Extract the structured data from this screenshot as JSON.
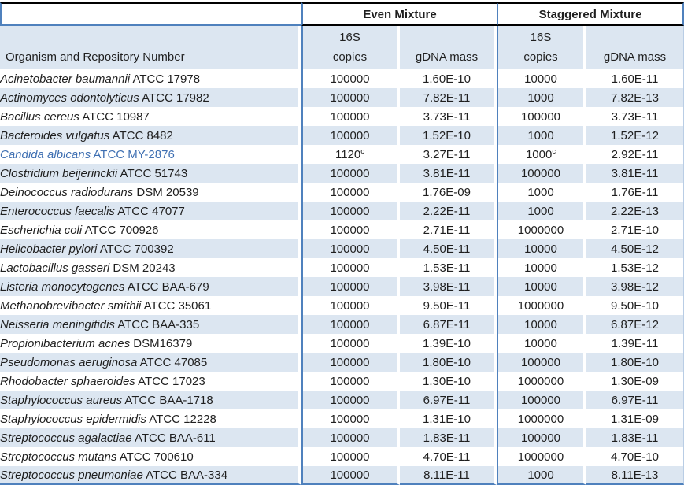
{
  "table": {
    "group_headers": {
      "even": "Even Mixture",
      "staggered": "Staggered Mixture"
    },
    "column_headers": {
      "organism": "Organism and Repository Number",
      "copies_line1": "16S",
      "copies_line2": "copies",
      "gdna_even": "gDNA mass",
      "gdna_staggered": "gDNA mass"
    },
    "colors": {
      "stripe_fill": "#dce6f1",
      "separator_blue": "#4f81bd",
      "top_rule_black": "#000000",
      "bottom_rule_blue": "#4f81bd",
      "highlight_organism": "#3e6fb2"
    },
    "rows": [
      {
        "species": "Acinetobacter baumannii",
        "repo": "ATCC 17978",
        "even_16s": "100000",
        "even_gdna": "1.60E-10",
        "stag_16s": "10000",
        "stag_gdna": "1.60E-11"
      },
      {
        "species": "Actinomyces odontolyticus",
        "repo": "ATCC 17982",
        "even_16s": "100000",
        "even_gdna": "7.82E-11",
        "stag_16s": "1000",
        "stag_gdna": "7.82E-13"
      },
      {
        "species": "Bacillus cereus",
        "repo": "ATCC 10987",
        "even_16s": "100000",
        "even_gdna": "3.73E-11",
        "stag_16s": "100000",
        "stag_gdna": "3.73E-11"
      },
      {
        "species": "Bacteroides vulgatus",
        "repo": "ATCC 8482",
        "even_16s": "100000",
        "even_gdna": "1.52E-10",
        "stag_16s": "1000",
        "stag_gdna": "1.52E-12"
      },
      {
        "species": "Candida albicans",
        "repo": "ATCC MY-2876",
        "even_16s": "1120",
        "even_16s_sup": "c",
        "even_gdna": "3.27E-11",
        "stag_16s": "1000",
        "stag_16s_sup": "c",
        "stag_gdna": "2.92E-11",
        "name_color": "#3e6fb2"
      },
      {
        "species": "Clostridium beijerinckii",
        "repo": "ATCC 51743",
        "even_16s": "100000",
        "even_gdna": "3.81E-11",
        "stag_16s": "100000",
        "stag_gdna": "3.81E-11"
      },
      {
        "species": "Deinococcus radiodurans",
        "repo": "DSM 20539",
        "even_16s": "100000",
        "even_gdna": "1.76E-09",
        "stag_16s": "1000",
        "stag_gdna": "1.76E-11"
      },
      {
        "species": "Enterococcus faecalis",
        "repo": "ATCC 47077",
        "even_16s": "100000",
        "even_gdna": "2.22E-11",
        "stag_16s": "1000",
        "stag_gdna": "2.22E-13"
      },
      {
        "species": "Escherichia coli",
        "repo": "ATCC 700926",
        "even_16s": "100000",
        "even_gdna": "2.71E-11",
        "stag_16s": "1000000",
        "stag_gdna": "2.71E-10"
      },
      {
        "species": "Helicobacter pylori",
        "repo": "ATCC 700392",
        "even_16s": "100000",
        "even_gdna": "4.50E-11",
        "stag_16s": "10000",
        "stag_gdna": "4.50E-12"
      },
      {
        "species": "Lactobacillus gasseri",
        "repo": "DSM 20243",
        "even_16s": "100000",
        "even_gdna": "1.53E-11",
        "stag_16s": "10000",
        "stag_gdna": "1.53E-12"
      },
      {
        "species": "Listeria monocytogenes",
        "repo": "ATCC BAA-679",
        "even_16s": "100000",
        "even_gdna": "3.98E-11",
        "stag_16s": "10000",
        "stag_gdna": "3.98E-12"
      },
      {
        "species": "Methanobrevibacter smithii",
        "repo": "ATCC 35061",
        "even_16s": "100000",
        "even_gdna": "9.50E-11",
        "stag_16s": "1000000",
        "stag_gdna": "9.50E-10"
      },
      {
        "species": "Neisseria meningitidis",
        "repo": "ATCC BAA-335",
        "even_16s": "100000",
        "even_gdna": "6.87E-11",
        "stag_16s": "10000",
        "stag_gdna": "6.87E-12"
      },
      {
        "species": "Propionibacterium acnes",
        "repo": "DSM16379",
        "even_16s": "100000",
        "even_gdna": "1.39E-10",
        "stag_16s": "10000",
        "stag_gdna": "1.39E-11"
      },
      {
        "species": "Pseudomonas aeruginosa",
        "repo": "ATCC 47085",
        "even_16s": "100000",
        "even_gdna": "1.80E-10",
        "stag_16s": "100000",
        "stag_gdna": "1.80E-10"
      },
      {
        "species": "Rhodobacter sphaeroides",
        "repo": "ATCC 17023",
        "even_16s": "100000",
        "even_gdna": "1.30E-10",
        "stag_16s": "1000000",
        "stag_gdna": "1.30E-09"
      },
      {
        "species": "Staphylococcus aureus",
        "repo": "ATCC BAA-1718",
        "even_16s": "100000",
        "even_gdna": "6.97E-11",
        "stag_16s": "100000",
        "stag_gdna": "6.97E-11"
      },
      {
        "species": "Staphylococcus epidermidis",
        "repo": "ATCC 12228",
        "even_16s": "100000",
        "even_gdna": "1.31E-10",
        "stag_16s": "1000000",
        "stag_gdna": "1.31E-09"
      },
      {
        "species": "Streptococcus agalactiae",
        "repo": "ATCC BAA-611",
        "even_16s": "100000",
        "even_gdna": "1.83E-11",
        "stag_16s": "100000",
        "stag_gdna": "1.83E-11"
      },
      {
        "species": "Streptococcus mutans",
        "repo": "ATCC 700610",
        "even_16s": "100000",
        "even_gdna": "4.70E-11",
        "stag_16s": "1000000",
        "stag_gdna": "4.70E-10"
      },
      {
        "species": "Streptococcus pneumoniae",
        "repo": "ATCC BAA-334",
        "even_16s": "100000",
        "even_gdna": "8.11E-11",
        "stag_16s": "1000",
        "stag_gdna": "8.11E-13"
      }
    ]
  }
}
